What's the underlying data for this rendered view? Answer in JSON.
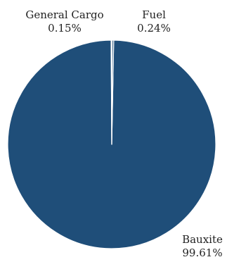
{
  "chart_data": {
    "type": "pie",
    "slices": [
      {
        "label": "Bauxite",
        "value": 99.61,
        "value_label": "99.61%",
        "color": "#1f4e79"
      },
      {
        "label": "General Cargo",
        "value": 0.15,
        "value_label": "0.15%",
        "color": "#a6a6a6"
      },
      {
        "label": "Fuel",
        "value": 0.24,
        "value_label": "0.24%",
        "color": "#1f4e79"
      }
    ],
    "slice_border_color": "#ffffff",
    "legend": "none"
  }
}
